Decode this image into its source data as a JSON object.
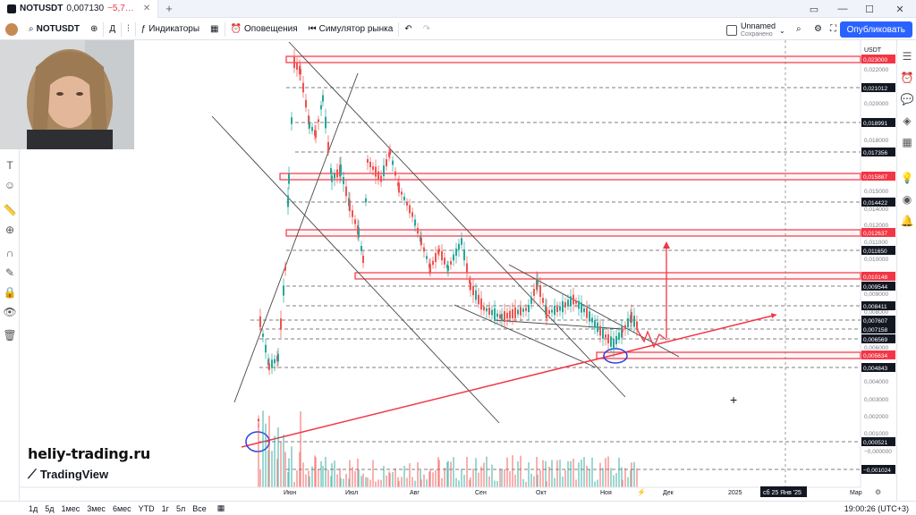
{
  "titlebar": {
    "symbol": "NOTUSDT",
    "price": "0,007130",
    "change": "−5,7…",
    "new_tab": "+",
    "win_minimize": "—",
    "win_maximize": "☐",
    "win_close": "✕"
  },
  "toolbar": {
    "symbol": "NOTUSDT",
    "interval": "Д",
    "indicators": "Индикаторы",
    "alerts": "Оповещения",
    "replay": "Симулятор рынка",
    "layout_name": "Unnamed",
    "layout_status": "Сохранено",
    "publish": "Опубликовать"
  },
  "watermark": "heliy-trading.ru",
  "tv_logo": "TradingView",
  "currency": "USDT",
  "bottombar": {
    "ranges": [
      "1д",
      "5д",
      "1мес",
      "3мес",
      "6мес",
      "YTD",
      "1г",
      "5л",
      "Все"
    ],
    "clock": "19:00:26 (UTC+3)"
  },
  "chart_data": {
    "type": "candlestick",
    "symbol": "NOTUSDT",
    "y_ticks": [
      "0,022000",
      "0,020000",
      "0,019000",
      "0,018000",
      "0,016000",
      "0,015000",
      "0,014000",
      "0,012000",
      "0,011000",
      "0,010000",
      "0,009000",
      "0,008000",
      "0,006000",
      "0,004000",
      "0,003000",
      "0,002000",
      "0,001000",
      "−0,000000"
    ],
    "price_labels": [
      {
        "label": "0,023000",
        "highlight": "red"
      },
      {
        "label": "0,021012",
        "highlight": "black"
      },
      {
        "label": "0,018991",
        "highlight": "black"
      },
      {
        "label": "0,017356",
        "highlight": "black"
      },
      {
        "label": "0,015887",
        "highlight": "red"
      },
      {
        "label": "0,014422",
        "highlight": "black"
      },
      {
        "label": "0,012637",
        "highlight": "red"
      },
      {
        "label": "0,011650",
        "highlight": "black"
      },
      {
        "label": "0,010148",
        "highlight": "red"
      },
      {
        "label": "0,009544",
        "highlight": "black"
      },
      {
        "label": "0,008411",
        "highlight": "black"
      },
      {
        "label": "0,007607",
        "highlight": "black"
      },
      {
        "label": "0,007158",
        "highlight": "black"
      },
      {
        "label": "0,006569",
        "highlight": "black"
      },
      {
        "label": "0,005634",
        "highlight": "red"
      },
      {
        "label": "0,004843",
        "highlight": "black"
      },
      {
        "label": "0,000521",
        "highlight": "black"
      },
      {
        "label": "−0,001024",
        "highlight": "black"
      }
    ],
    "x_labels": [
      "Июн",
      "Июл",
      "Авг",
      "Сен",
      "Окт",
      "Ноя",
      "Дек",
      "2025",
      "Мар"
    ],
    "crosshair_date": "сб 25 Янв '25",
    "colors": {
      "up": "#26a69a",
      "down": "#ef5350",
      "drawing": "#f23645",
      "zone": "#f23645"
    }
  }
}
